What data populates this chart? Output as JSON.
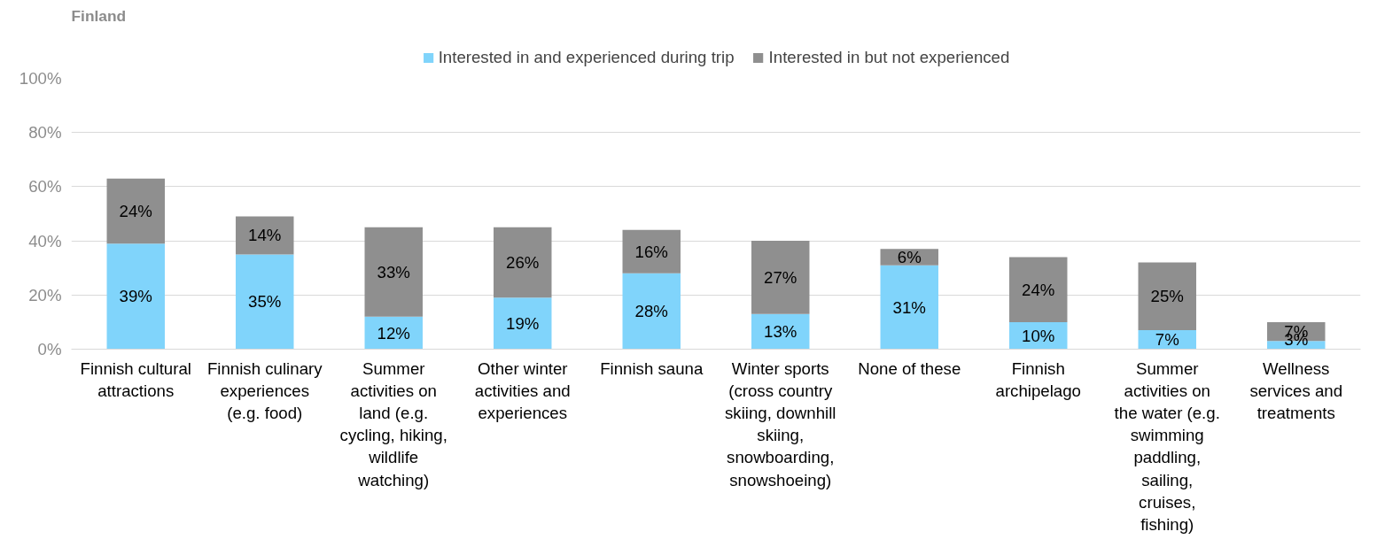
{
  "chart_data": {
    "type": "bar",
    "title": "Finland",
    "stacked": true,
    "legend": "top",
    "grid": "y",
    "categories": [
      "Finnish cultural attractions",
      "Finnish culinary experiences (e.g. food)",
      "Summer activities on land (e.g. cycling, hiking, wildlife watching)",
      "Other winter activities and experiences",
      "Finnish sauna",
      "Winter sports (cross country skiing, downhill skiing, snowboarding, snowshoeing)",
      "None of these",
      "Finnish archipelago",
      "Summer activities on the water (e.g. swimming paddling, sailing, cruises, fishing)",
      "Wellness services and treatments"
    ],
    "series": [
      {
        "name": "Interested in and experienced during trip",
        "color": "#80d4fb",
        "values": [
          39,
          35,
          12,
          19,
          28,
          13,
          31,
          10,
          7,
          3
        ],
        "value_labels": [
          "39%",
          "35%",
          "12%",
          "19%",
          "28%",
          "13%",
          "31%",
          "10%",
          "7%",
          "3%"
        ]
      },
      {
        "name": "Interested in but not experienced",
        "color": "#8f8f8f",
        "values": [
          24,
          14,
          33,
          26,
          16,
          27,
          6,
          24,
          25,
          7
        ],
        "value_labels": [
          "24%",
          "14%",
          "33%",
          "26%",
          "16%",
          "27%",
          "6%",
          "24%",
          "25%",
          "7%"
        ]
      }
    ],
    "ylim": [
      0,
      100
    ],
    "yticks": [
      {
        "value": 0,
        "label": "0%"
      },
      {
        "value": 20,
        "label": "20%"
      },
      {
        "value": 40,
        "label": "40%"
      },
      {
        "value": 60,
        "label": "60%"
      },
      {
        "value": 80,
        "label": "80%"
      },
      {
        "value": 100,
        "label": "100%"
      }
    ]
  }
}
